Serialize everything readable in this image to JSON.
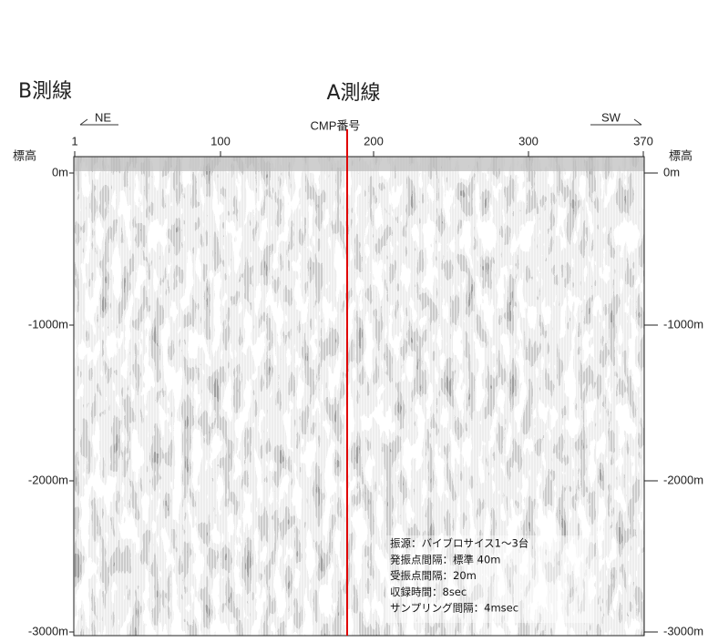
{
  "title_left": "B測線",
  "title_right": "A測線",
  "top_axis": {
    "left_direction": "NE",
    "label": "CMP番号",
    "right_direction": "SW",
    "ticks": [
      "1",
      "100",
      "200",
      "300",
      "370"
    ]
  },
  "left_axis": {
    "label": "標高",
    "ticks": [
      "0m",
      "-1000m",
      "-2000m",
      "-3000m"
    ]
  },
  "right_axis": {
    "label": "標高",
    "ticks": [
      "0m",
      "-1000m",
      "-2000m",
      "-3000m"
    ]
  },
  "notes": [
    "振源：バイブロサイス1～3台",
    "発振点間隔：標準 40m",
    "受振点間隔：20m",
    "収録時間：8sec",
    "サンプリング間隔：4msec"
  ]
}
